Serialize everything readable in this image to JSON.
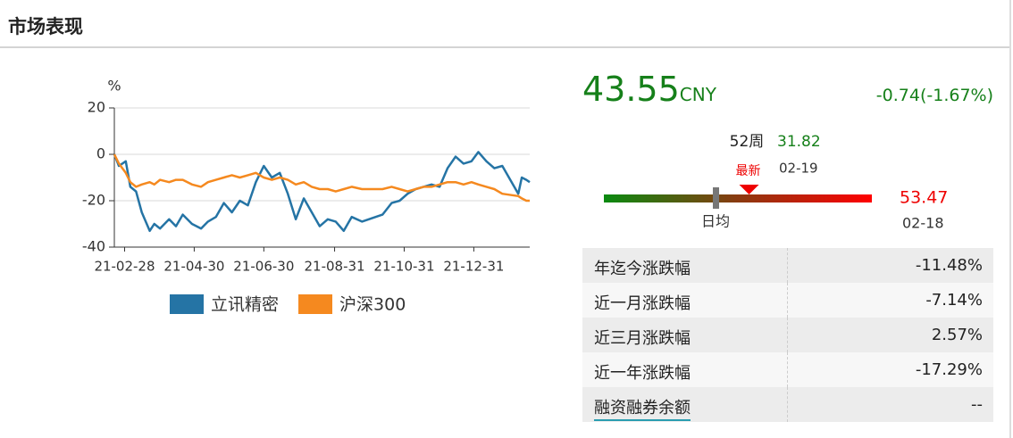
{
  "header": {
    "title": "市场表现"
  },
  "chart_data": {
    "type": "line",
    "y_unit": "%",
    "x": [
      "21-02-19",
      "21-02-23",
      "21-03-01",
      "21-03-05",
      "21-03-10",
      "21-03-15",
      "21-03-22",
      "21-03-26",
      "21-03-31",
      "21-04-08",
      "21-04-14",
      "21-04-20",
      "21-04-28",
      "21-05-06",
      "21-05-12",
      "21-05-19",
      "21-05-26",
      "21-06-02",
      "21-06-09",
      "21-06-16",
      "21-06-23",
      "21-06-30",
      "21-07-07",
      "21-07-14",
      "21-07-21",
      "21-07-28",
      "21-08-04",
      "21-08-11",
      "21-08-18",
      "21-08-25",
      "21-09-01",
      "21-09-08",
      "21-09-15",
      "21-09-24",
      "21-10-12",
      "21-10-20",
      "21-10-27",
      "21-11-03",
      "21-11-10",
      "21-11-17",
      "21-11-24",
      "21-12-01",
      "21-12-08",
      "21-12-15",
      "21-12-22",
      "21-12-29",
      "22-01-04",
      "22-01-11",
      "22-01-18",
      "22-01-25",
      "22-02-08",
      "22-02-11",
      "22-02-15",
      "22-02-18"
    ],
    "xlim": [
      "21-02-19",
      "22-02-18"
    ],
    "xticks": [
      "21-02-28",
      "21-04-30",
      "21-06-30",
      "21-08-31",
      "21-10-31",
      "21-12-31"
    ],
    "ylim": [
      -40,
      20
    ],
    "yticks": [
      20,
      0,
      -20,
      -40
    ],
    "grid": true,
    "legend": "bottom",
    "series": [
      {
        "name": "立讯精密",
        "color": "#2574a5",
        "values": [
          0,
          -5,
          -3,
          -14,
          -16,
          -25,
          -33,
          -30,
          -32,
          -28,
          -31,
          -26,
          -30,
          -32,
          -29,
          -27,
          -21,
          -25,
          -20,
          -22,
          -12,
          -5,
          -10,
          -8,
          -17,
          -28,
          -19,
          -25,
          -31,
          -28,
          -29,
          -33,
          -27,
          -29,
          -26,
          -21,
          -20,
          -17,
          -15,
          -14,
          -13,
          -14,
          -6,
          -1,
          -4,
          -3,
          1,
          -3,
          -6,
          -5,
          -17,
          -10,
          -11,
          -12
        ]
      },
      {
        "name": "沪深300",
        "color": "#f5891f",
        "values": [
          0,
          -4,
          -8,
          -12,
          -14,
          -13,
          -12,
          -13,
          -11,
          -12,
          -11,
          -11,
          -13,
          -14,
          -12,
          -11,
          -10,
          -9,
          -10,
          -9,
          -8,
          -10,
          -11,
          -10,
          -11,
          -13,
          -12,
          -14,
          -15,
          -15,
          -16,
          -15,
          -14,
          -15,
          -15,
          -14,
          -15,
          -16,
          -15,
          -14,
          -14,
          -13,
          -12,
          -12,
          -13,
          -12,
          -13,
          -14,
          -15,
          -17,
          -18,
          -19,
          -20,
          -20
        ]
      }
    ]
  },
  "quote": {
    "price": 43.55,
    "currency": "CNY",
    "change": "-0.74(-1.67%)",
    "range_label": "52周",
    "low": 31.82,
    "low_date": "02-19",
    "high": 53.47,
    "high_date": "02-18",
    "latest_label": "最新",
    "average_label": "日均"
  },
  "table": {
    "rows": [
      [
        "年迄今涨跌幅",
        "-11.48%"
      ],
      [
        "近一月涨跌幅",
        "-7.14%"
      ],
      [
        "近三月涨跌幅",
        "2.57%"
      ],
      [
        "近一年涨跌幅",
        "-17.29%"
      ],
      [
        "融资融券余额",
        "--"
      ]
    ]
  }
}
